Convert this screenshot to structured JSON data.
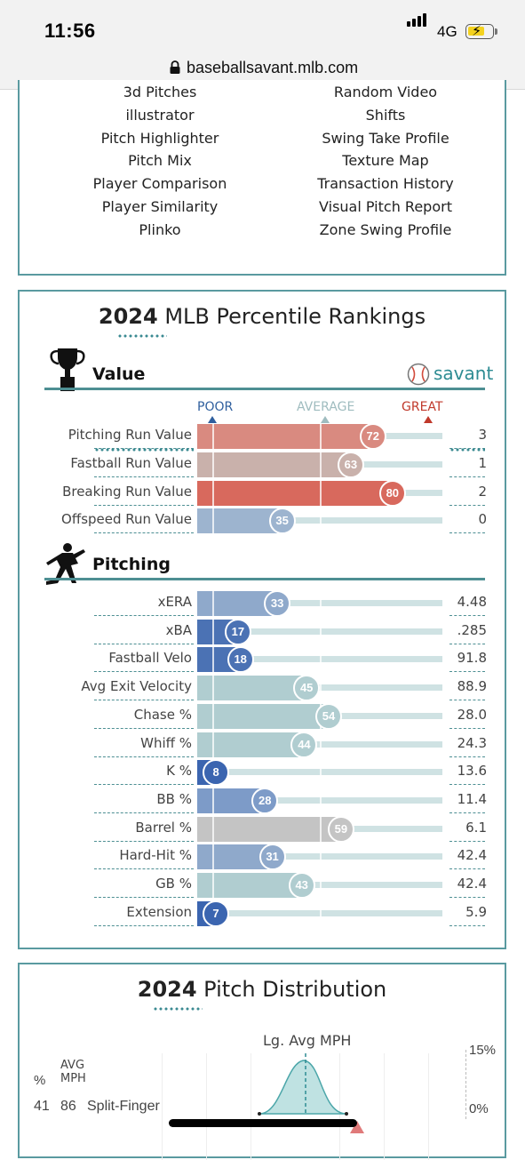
{
  "status_bar": {
    "time": "11:56",
    "network": "4G"
  },
  "browser": {
    "url": "baseballsavant.mlb.com"
  },
  "tools": {
    "left": [
      "3d Pitches",
      "illustrator",
      "Pitch Highlighter",
      "Pitch Mix",
      "Player Comparison",
      "Player Similarity",
      "Plinko"
    ],
    "right": [
      "Random Video",
      "Shifts",
      "Swing Take Profile",
      "Texture Map",
      "Transaction History",
      "Visual Pitch Report",
      "Zone Swing Profile"
    ]
  },
  "rankings": {
    "title_year": "2024",
    "title_rest": " MLB Percentile Rankings",
    "scale": {
      "poor": "POOR",
      "average": "AVERAGE",
      "great": "GREAT"
    },
    "value_section": {
      "title": "Value",
      "brand": "savant",
      "rows": [
        {
          "label": "Pitching Run Value",
          "percentile": 72,
          "value": "3",
          "color": "#d98a80"
        },
        {
          "label": "Fastball Run Value",
          "percentile": 63,
          "value": "1",
          "color": "#c9b1ab"
        },
        {
          "label": "Breaking Run Value",
          "percentile": 80,
          "value": "2",
          "color": "#d8695d"
        },
        {
          "label": "Offspeed Run Value",
          "percentile": 35,
          "value": "0",
          "color": "#9db4cf"
        }
      ]
    },
    "pitching_section": {
      "title": "Pitching",
      "rows": [
        {
          "label": "xERA",
          "percentile": 33,
          "value": "4.48",
          "color": "#8fa9cb"
        },
        {
          "label": "xBA",
          "percentile": 17,
          "value": ".285",
          "color": "#4b72b4"
        },
        {
          "label": "Fastball Velo",
          "percentile": 18,
          "value": "91.8",
          "color": "#4b72b4"
        },
        {
          "label": "Avg Exit Velocity",
          "percentile": 45,
          "value": "88.9",
          "color": "#b0cdd0"
        },
        {
          "label": "Chase %",
          "percentile": 54,
          "value": "28.0",
          "color": "#b0cdd0"
        },
        {
          "label": "Whiff %",
          "percentile": 44,
          "value": "24.3",
          "color": "#b0cdd0"
        },
        {
          "label": "K %",
          "percentile": 8,
          "value": "13.6",
          "color": "#3b65b0"
        },
        {
          "label": "BB %",
          "percentile": 28,
          "value": "11.4",
          "color": "#7d9bc8"
        },
        {
          "label": "Barrel %",
          "percentile": 59,
          "value": "6.1",
          "color": "#c4c4c4"
        },
        {
          "label": "Hard-Hit %",
          "percentile": 31,
          "value": "42.4",
          "color": "#8fa9cb"
        },
        {
          "label": "GB %",
          "percentile": 43,
          "value": "42.4",
          "color": "#b0cdd0"
        },
        {
          "label": "Extension",
          "percentile": 7,
          "value": "5.9",
          "color": "#3b65b0"
        }
      ]
    }
  },
  "distribution": {
    "title_year": "2024",
    "title_rest": " Pitch Distribution",
    "lg_avg_label": "Lg. Avg MPH",
    "col_pct": "%",
    "col_avg_line1": "AVG",
    "col_avg_line2": "MPH",
    "pct_max": "15%",
    "pct_min": "0%",
    "pitch": {
      "pct": "41",
      "mph": "86",
      "name": "Split-Finger"
    }
  }
}
